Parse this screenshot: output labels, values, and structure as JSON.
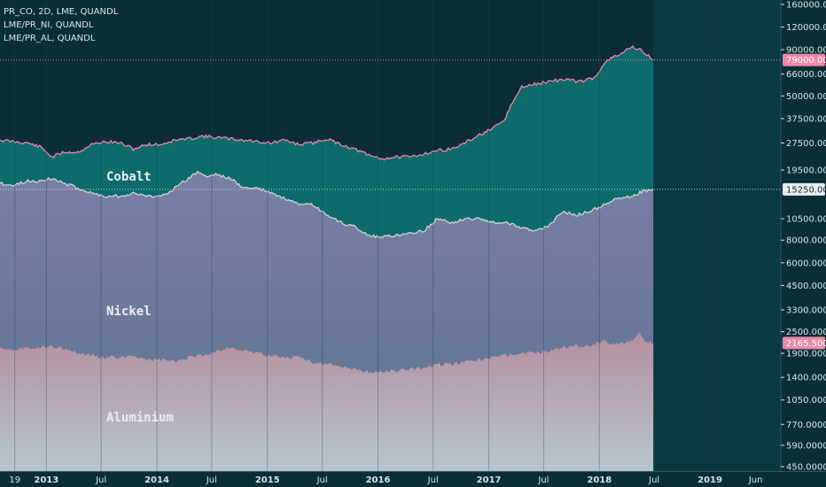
{
  "legend": [
    {
      "label": "PR_CO, 2D, LME, QUANDL"
    },
    {
      "label": "LME/PR_NI, QUANDL"
    },
    {
      "label": "LME/PR_AL, QUANDL"
    }
  ],
  "colors": {
    "background": "#0b2e36",
    "background_future": "#0a3a41",
    "cobalt_line": "#ef86a8",
    "cobalt_fill": "#0d6b6b",
    "nickel_line": "#c9d6d6",
    "nickel_fill_top": "#7a7ea6",
    "nickel_fill_bottom": "#5b7390",
    "aluminium_fill_top": "#b38f9f",
    "aluminium_fill_bottom": "#b7c6cf",
    "axis_text": "#d8e4e6",
    "grid": "#14434b",
    "tag_cobalt": "#ef86a8",
    "tag_nickel": "#e9eef0",
    "tag_aluminium": "#e98aa6"
  },
  "chart_data": {
    "type": "area",
    "scale": "log",
    "x_range": [
      "2012-08-01",
      "2019-08-20"
    ],
    "last_date": "2018-06-28",
    "y_ticks": [
      "160000.0000",
      "120000.0000",
      "90000.0000",
      "66000.0000",
      "50000.0000",
      "37500.0000",
      "27500.0000",
      "19500.0000",
      "15250.0000",
      "10500.0000",
      "8000.0000",
      "6000.0000",
      "4500.0000",
      "3300.0000",
      "2500.0000",
      "1900.0000",
      "1400.0000",
      "1050.0000",
      "770.0000",
      "590.0000",
      "450.0000"
    ],
    "x_ticks": [
      "19",
      "2013",
      "Jul",
      "2014",
      "Jul",
      "2015",
      "Jul",
      "2016",
      "Jul",
      "2017",
      "Jul",
      "2018",
      "Jul",
      "2019",
      "Jun"
    ],
    "last_value_tags": [
      {
        "series": "Cobalt",
        "value": "79000.0000"
      },
      {
        "series": "Nickel",
        "value": "15250.0000"
      },
      {
        "series": "Aluminium",
        "value": "2165.5000"
      }
    ],
    "series": [
      {
        "name": "Cobalt",
        "x": [
          "2012-08-01",
          "2012-09-15",
          "2012-11-01",
          "2012-12-15",
          "2013-01-20",
          "2013-03-01",
          "2013-04-15",
          "2013-06-01",
          "2013-07-15",
          "2013-09-01",
          "2013-10-15",
          "2013-12-01",
          "2014-01-15",
          "2014-03-01",
          "2014-04-15",
          "2014-06-01",
          "2014-07-15",
          "2014-09-01",
          "2014-10-15",
          "2014-12-01",
          "2015-01-15",
          "2015-03-01",
          "2015-04-15",
          "2015-06-01",
          "2015-07-15",
          "2015-09-01",
          "2015-10-15",
          "2015-12-01",
          "2016-01-15",
          "2016-03-01",
          "2016-04-15",
          "2016-06-01",
          "2016-07-15",
          "2016-09-01",
          "2016-10-15",
          "2016-12-01",
          "2017-01-15",
          "2017-02-20",
          "2017-03-20",
          "2017-04-20",
          "2017-06-01",
          "2017-07-15",
          "2017-08-15",
          "2017-09-15",
          "2017-10-15",
          "2017-11-15",
          "2017-12-15",
          "2018-01-15",
          "2018-02-15",
          "2018-03-15",
          "2018-04-15",
          "2018-05-15",
          "2018-06-01",
          "2018-06-28"
        ],
        "values": [
          28500,
          28000,
          27500,
          26000,
          23000,
          24500,
          24500,
          27000,
          28000,
          27500,
          25500,
          27000,
          27000,
          28500,
          29000,
          30000,
          29500,
          29000,
          28500,
          28000,
          27500,
          28500,
          27000,
          27500,
          29000,
          27000,
          25500,
          23500,
          22500,
          23000,
          23000,
          24000,
          25000,
          25500,
          27500,
          30500,
          33000,
          36500,
          46000,
          56000,
          58000,
          60000,
          61000,
          62000,
          60000,
          61000,
          63000,
          75000,
          82000,
          85000,
          94000,
          90000,
          86000,
          79000
        ]
      },
      {
        "name": "Nickel",
        "x": [
          "2012-08-01",
          "2012-09-15",
          "2012-11-01",
          "2012-12-15",
          "2013-01-20",
          "2013-03-01",
          "2013-04-15",
          "2013-06-01",
          "2013-07-15",
          "2013-09-01",
          "2013-10-15",
          "2013-12-01",
          "2014-01-15",
          "2014-03-01",
          "2014-04-15",
          "2014-05-15",
          "2014-06-15",
          "2014-07-15",
          "2014-09-01",
          "2014-10-15",
          "2014-12-01",
          "2015-01-15",
          "2015-03-01",
          "2015-04-15",
          "2015-06-01",
          "2015-07-15",
          "2015-09-01",
          "2015-10-15",
          "2015-12-01",
          "2016-01-15",
          "2016-03-01",
          "2016-04-15",
          "2016-06-01",
          "2016-07-15",
          "2016-09-01",
          "2016-10-15",
          "2016-12-01",
          "2017-01-15",
          "2017-03-01",
          "2017-04-15",
          "2017-06-01",
          "2017-07-15",
          "2017-09-01",
          "2017-10-15",
          "2017-12-01",
          "2018-01-15",
          "2018-03-01",
          "2018-04-15",
          "2018-06-01",
          "2018-06-28"
        ],
        "values": [
          16500,
          16000,
          17000,
          17000,
          17500,
          16500,
          15500,
          14500,
          14000,
          14000,
          14500,
          14000,
          14000,
          15500,
          17500,
          19000,
          18000,
          18500,
          17500,
          15500,
          15500,
          14500,
          13500,
          12500,
          12500,
          11000,
          10000,
          9500,
          8500,
          8300,
          8500,
          8800,
          9000,
          10500,
          10000,
          10500,
          10500,
          10000,
          10000,
          9500,
          8900,
          9500,
          11500,
          11000,
          11500,
          12500,
          13500,
          14000,
          15000,
          15250
        ]
      },
      {
        "name": "Aluminium",
        "x": [
          "2012-08-01",
          "2012-09-15",
          "2012-11-01",
          "2012-12-15",
          "2013-01-20",
          "2013-03-01",
          "2013-04-15",
          "2013-06-01",
          "2013-07-15",
          "2013-09-01",
          "2013-10-15",
          "2013-12-01",
          "2014-01-15",
          "2014-03-01",
          "2014-04-15",
          "2014-06-01",
          "2014-07-15",
          "2014-09-01",
          "2014-10-15",
          "2014-12-01",
          "2015-01-15",
          "2015-03-01",
          "2015-04-15",
          "2015-06-01",
          "2015-07-15",
          "2015-09-01",
          "2015-10-15",
          "2015-12-01",
          "2016-01-15",
          "2016-03-01",
          "2016-04-15",
          "2016-06-01",
          "2016-07-15",
          "2016-09-01",
          "2016-10-15",
          "2016-12-01",
          "2017-01-15",
          "2017-03-01",
          "2017-04-15",
          "2017-06-01",
          "2017-07-15",
          "2017-09-01",
          "2017-10-15",
          "2017-12-01",
          "2018-01-15",
          "2018-03-01",
          "2018-04-15",
          "2018-05-15",
          "2018-06-01",
          "2018-06-28"
        ],
        "values": [
          2050,
          2000,
          2050,
          2050,
          2100,
          2000,
          1900,
          1850,
          1800,
          1800,
          1850,
          1750,
          1750,
          1700,
          1800,
          1850,
          1950,
          2050,
          1950,
          1900,
          1850,
          1800,
          1800,
          1700,
          1650,
          1600,
          1550,
          1500,
          1500,
          1520,
          1550,
          1600,
          1650,
          1650,
          1700,
          1750,
          1800,
          1850,
          1900,
          1900,
          1950,
          2050,
          2100,
          2100,
          2200,
          2150,
          2200,
          2450,
          2250,
          2165.5
        ]
      }
    ],
    "area_labels": [
      {
        "series": "Cobalt",
        "label": "Cobalt"
      },
      {
        "series": "Nickel",
        "label": "Nickel"
      },
      {
        "series": "Aluminium",
        "label": "Aluminium"
      }
    ]
  }
}
